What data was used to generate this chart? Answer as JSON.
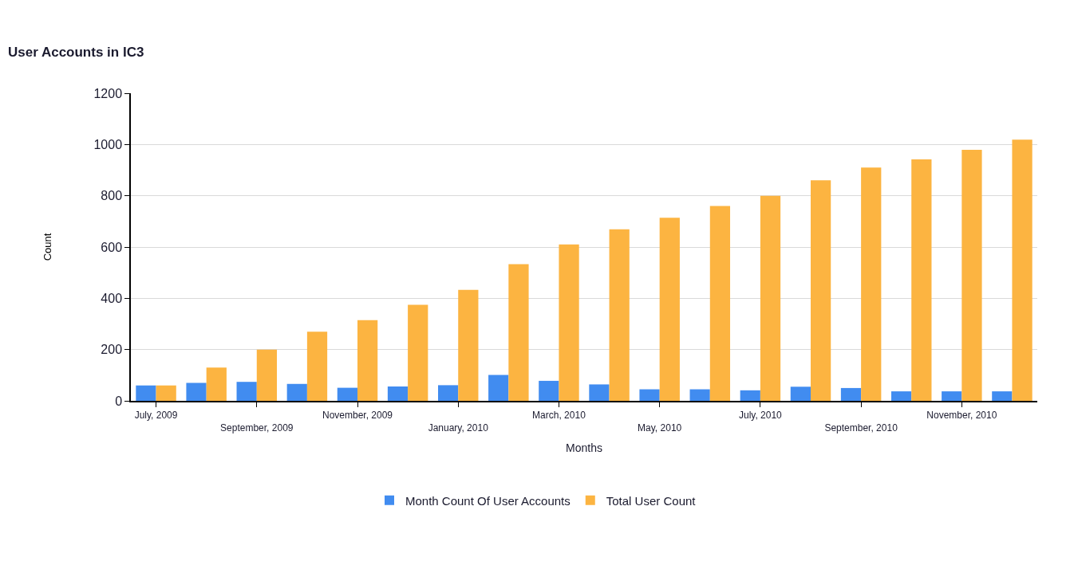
{
  "chart_data": {
    "type": "bar",
    "title": "User Accounts in IC3",
    "xlabel": "Months",
    "ylabel": "Count",
    "categories": [
      "July, 2009",
      null,
      "September, 2009",
      null,
      "November, 2009",
      null,
      "January, 2010",
      null,
      "March, 2010",
      null,
      "May, 2010",
      null,
      "July, 2010",
      null,
      "September, 2010",
      null,
      "November, 2010",
      null
    ],
    "series": [
      {
        "name": "Month Count Of User Accounts",
        "color": "#418cf0",
        "values": [
          60,
          70,
          74,
          66,
          51,
          56,
          61,
          101,
          78,
          64,
          45,
          45,
          41,
          55,
          50,
          37,
          37,
          37
        ]
      },
      {
        "name": "Total User Count",
        "color": "#fcb441",
        "values": [
          60,
          130,
          200,
          270,
          315,
          375,
          433,
          533,
          610,
          669,
          714,
          760,
          800,
          860,
          910,
          942,
          979,
          1019
        ]
      }
    ],
    "ylim": [
      0,
      1200
    ],
    "yticks": [
      0,
      200,
      400,
      600,
      800,
      1000,
      1200
    ],
    "grid": "y",
    "legend": "bottom"
  }
}
